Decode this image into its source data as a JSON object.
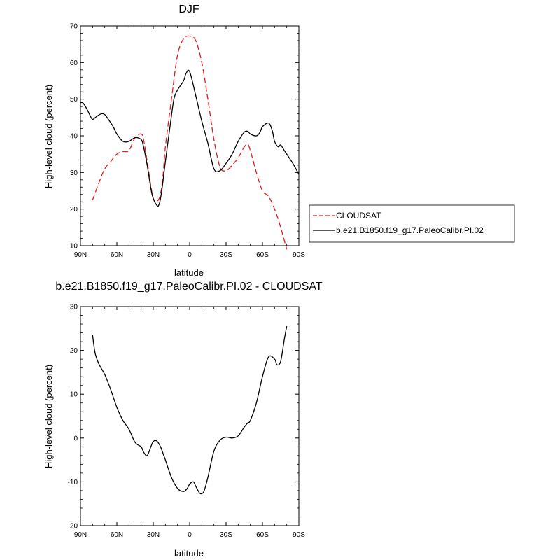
{
  "chart_data": [
    {
      "type": "line",
      "title": "DJF",
      "xlabel": "latitude",
      "ylabel": "High-level cloud (percent)",
      "xlim": [
        90,
        -90
      ],
      "ylim": [
        10,
        70
      ],
      "x_ticks": [
        90,
        60,
        30,
        0,
        -30,
        -60,
        -90
      ],
      "x_tick_labels": [
        "90N",
        "60N",
        "30N",
        "0",
        "30S",
        "60S",
        "90S"
      ],
      "y_ticks": [
        10,
        20,
        30,
        40,
        50,
        60,
        70
      ],
      "y_tick_labels": [
        "10",
        "20",
        "30",
        "40",
        "50",
        "60",
        "70"
      ],
      "legend_position": "right",
      "series": [
        {
          "name": "CLOUDSAT",
          "color": "#e41a1c",
          "dash": "dashed",
          "x": [
            80,
            75,
            70,
            65,
            60,
            55,
            50,
            45,
            40,
            38,
            35,
            30,
            25,
            22,
            20,
            15,
            10,
            5,
            0,
            -5,
            -10,
            -15,
            -20,
            -25,
            -30,
            -35,
            -40,
            -45,
            -48,
            -50,
            -55,
            -60,
            -65,
            -70,
            -75,
            -80
          ],
          "y": [
            22.5,
            27,
            31,
            33,
            35,
            35.7,
            36,
            39.5,
            40.5,
            39,
            33,
            23,
            23,
            29,
            37,
            50,
            62,
            66.5,
            67.2,
            66,
            60,
            50,
            39,
            31.5,
            30.5,
            32,
            34,
            37,
            37.6,
            36,
            30,
            25,
            23.5,
            20,
            15,
            9
          ]
        },
        {
          "name": "b.e21.B1850.f19_g17.PaleoCalibr.PI.02",
          "color": "#000000",
          "dash": "solid",
          "x": [
            90,
            88,
            85,
            82,
            80,
            77,
            73,
            70,
            67,
            63,
            60,
            55,
            50,
            45,
            40,
            38,
            35,
            31,
            27,
            25,
            23,
            20,
            16,
            13,
            10,
            5,
            3,
            0,
            -5,
            -10,
            -15,
            -20,
            -25,
            -30,
            -35,
            -40,
            -45,
            -48,
            -50,
            -55,
            -58,
            -60,
            -65,
            -68,
            -70,
            -73,
            -75,
            -78,
            -80,
            -85,
            -90
          ],
          "y": [
            49,
            49,
            47.5,
            45.5,
            44.5,
            45.2,
            46,
            45.8,
            44.5,
            42.5,
            40.5,
            38.5,
            38.5,
            39.5,
            39,
            37,
            32,
            24,
            21,
            21.5,
            25,
            33,
            43,
            50,
            52.5,
            55,
            57,
            57.5,
            51,
            44,
            38,
            31,
            30.5,
            32.5,
            35,
            38.5,
            41,
            41.2,
            40.5,
            40,
            41,
            42.5,
            43.5,
            41.5,
            38.5,
            37,
            37.5,
            36,
            35,
            32.5,
            29.5
          ]
        }
      ]
    },
    {
      "type": "line",
      "title": "b.e21.B1850.f19_g17.PaleoCalibr.PI.02 - CLOUDSAT",
      "xlabel": "latitude",
      "ylabel": "High-level cloud (percent)",
      "xlim": [
        90,
        -90
      ],
      "ylim": [
        -20,
        30
      ],
      "x_ticks": [
        90,
        60,
        30,
        0,
        -30,
        -60,
        -90
      ],
      "x_tick_labels": [
        "90N",
        "60N",
        "30N",
        "0",
        "30S",
        "60S",
        "90S"
      ],
      "y_ticks": [
        -20,
        -10,
        0,
        10,
        20,
        30
      ],
      "y_tick_labels": [
        "-20",
        "-10",
        "0",
        "10",
        "20",
        "30"
      ],
      "series": [
        {
          "color": "#000000",
          "dash": "solid",
          "x": [
            80,
            78,
            75,
            70,
            65,
            60,
            55,
            50,
            45,
            40,
            38,
            35,
            32,
            30,
            27,
            24,
            22,
            20,
            15,
            10,
            5,
            2,
            0,
            -3,
            -5,
            -8,
            -10,
            -12,
            -15,
            -20,
            -25,
            -30,
            -35,
            -40,
            -45,
            -48,
            -50,
            -55,
            -60,
            -65,
            -70,
            -72,
            -75,
            -78,
            -80
          ],
          "y": [
            23.5,
            19.5,
            17,
            14.5,
            11,
            7,
            4,
            2,
            -1,
            -2,
            -3.2,
            -4,
            -2,
            -0.8,
            -0.7,
            -2,
            -3.5,
            -5,
            -9,
            -11.5,
            -12.2,
            -11.5,
            -10.5,
            -10,
            -11,
            -12.5,
            -12.7,
            -12,
            -9,
            -3,
            -0.5,
            0.2,
            0,
            0.5,
            2.5,
            3.5,
            4,
            8,
            14,
            18.5,
            18,
            16.7,
            17.5,
            22.5,
            25.5
          ]
        }
      ]
    }
  ],
  "legend_entries": [
    "CLOUDSAT",
    "b.e21.B1850.f19_g17.PaleoCalibr.PI.02"
  ]
}
